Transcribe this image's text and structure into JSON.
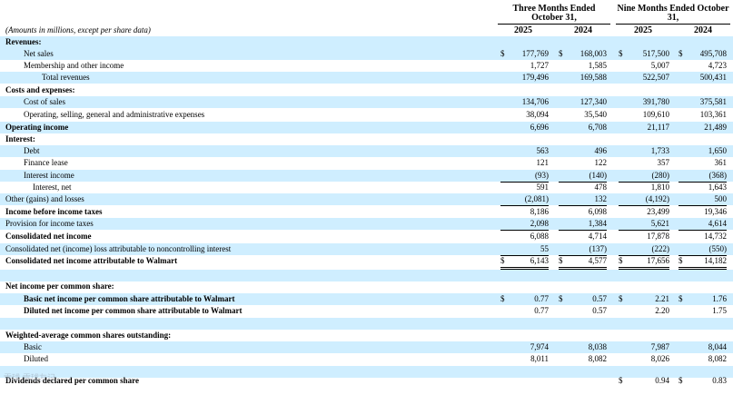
{
  "header": {
    "units_note": "(Amounts in millions, except per share data)",
    "group_three": "Three Months Ended October 31,",
    "group_nine": "Nine Months Ended October 31,",
    "years": [
      "2025",
      "2024",
      "2025",
      "2024"
    ]
  },
  "rows": [
    {
      "label": "Revenues:",
      "style": "bold",
      "indent": 0,
      "shade": true,
      "values": []
    },
    {
      "label": "Net sales",
      "indent": 2,
      "shade": true,
      "cur": true,
      "values": [
        "177,769",
        "168,003",
        "517,500",
        "495,708"
      ]
    },
    {
      "label": "Membership and other income",
      "indent": 2,
      "shade": false,
      "values": [
        "1,727",
        "1,585",
        "5,007",
        "4,723"
      ]
    },
    {
      "label": "Total revenues",
      "indent": 4,
      "shade": true,
      "values": [
        "179,496",
        "169,588",
        "522,507",
        "500,431"
      ]
    },
    {
      "label": "Costs and expenses:",
      "indent": 0,
      "shade": false,
      "values": []
    },
    {
      "label": "Cost of sales",
      "indent": 2,
      "shade": true,
      "values": [
        "134,706",
        "127,340",
        "391,780",
        "375,581"
      ]
    },
    {
      "label": "Operating, selling, general and administrative expenses",
      "indent": 2,
      "shade": false,
      "values": [
        "38,094",
        "35,540",
        "109,610",
        "103,361"
      ]
    },
    {
      "label": "Operating income",
      "style": "bold",
      "indent": 0,
      "shade": true,
      "values": [
        "6,696",
        "6,708",
        "21,117",
        "21,489"
      ]
    },
    {
      "label": "Interest:",
      "style": "bold",
      "indent": 0,
      "shade": false,
      "values": []
    },
    {
      "label": "Debt",
      "indent": 2,
      "shade": true,
      "values": [
        "563",
        "496",
        "1,733",
        "1,650"
      ]
    },
    {
      "label": "Finance lease",
      "indent": 2,
      "shade": false,
      "values": [
        "121",
        "122",
        "357",
        "361"
      ]
    },
    {
      "label": "Interest income",
      "indent": 2,
      "shade": true,
      "values": [
        "(93)",
        "(140)",
        "(280)",
        "(368)"
      ]
    },
    {
      "label": "Interest, net",
      "indent": 3,
      "shade": false,
      "values": [
        "591",
        "478",
        "1,810",
        "1,643"
      ]
    },
    {
      "label": "Other (gains) and losses",
      "indent": 0,
      "shade": true,
      "values": [
        "(2,081)",
        "132",
        "(4,192)",
        "500"
      ]
    },
    {
      "label": "Income before income taxes",
      "style": "bold",
      "indent": 0,
      "shade": false,
      "values": [
        "8,186",
        "6,098",
        "23,499",
        "19,346"
      ]
    },
    {
      "label": "Provision for income taxes",
      "indent": 0,
      "shade": true,
      "values": [
        "2,098",
        "1,384",
        "5,621",
        "4,614"
      ]
    },
    {
      "label": "Consolidated net income",
      "style": "bold",
      "indent": 0,
      "shade": false,
      "values": [
        "6,088",
        "4,714",
        "17,878",
        "14,732"
      ]
    },
    {
      "label": "Consolidated net (income) loss attributable to noncontrolling interest",
      "indent": 0,
      "shade": true,
      "values": [
        "55",
        "(137)",
        "(222)",
        "(550)"
      ]
    },
    {
      "label": "Consolidated net income attributable to Walmart",
      "style": "bold",
      "indent": 0,
      "shade": false,
      "cur": true,
      "values": [
        "6,143",
        "4,577",
        "17,656",
        "14,182"
      ]
    },
    {
      "label": "",
      "indent": 0,
      "shade": true,
      "values": []
    },
    {
      "label": "Net income per common share:",
      "style": "bold",
      "indent": 0,
      "shade": false,
      "values": []
    },
    {
      "label": "Basic net income per common share attributable to Walmart",
      "style": "bold",
      "indent": 2,
      "shade": true,
      "cur": true,
      "values": [
        "0.77",
        "0.57",
        "2.21",
        "1.76"
      ]
    },
    {
      "label": "Diluted net income per common share attributable to Walmart",
      "style": "bold",
      "indent": 2,
      "shade": false,
      "values": [
        "0.77",
        "0.57",
        "2.20",
        "1.75"
      ]
    },
    {
      "label": "",
      "indent": 0,
      "shade": true,
      "values": []
    },
    {
      "label": "Weighted-average common shares outstanding:",
      "style": "bold",
      "indent": 0,
      "shade": false,
      "values": []
    },
    {
      "label": "Basic",
      "indent": 2,
      "shade": true,
      "values": [
        "7,974",
        "8,038",
        "7,987",
        "8,044"
      ]
    },
    {
      "label": "Diluted",
      "indent": 2,
      "shade": false,
      "values": [
        "8,011",
        "8,082",
        "8,026",
        "8,082"
      ]
    },
    {
      "label": "",
      "indent": 0,
      "shade": true,
      "values": []
    },
    {
      "label": "Dividends declared per common share",
      "style": "bold",
      "indent": 0,
      "shade": false,
      "cur_nine_only": true,
      "values": [
        "",
        "",
        "0.94",
        "0.83"
      ]
    }
  ],
  "currency_symbol": "$",
  "watermark": "雪球 雪球友记"
}
